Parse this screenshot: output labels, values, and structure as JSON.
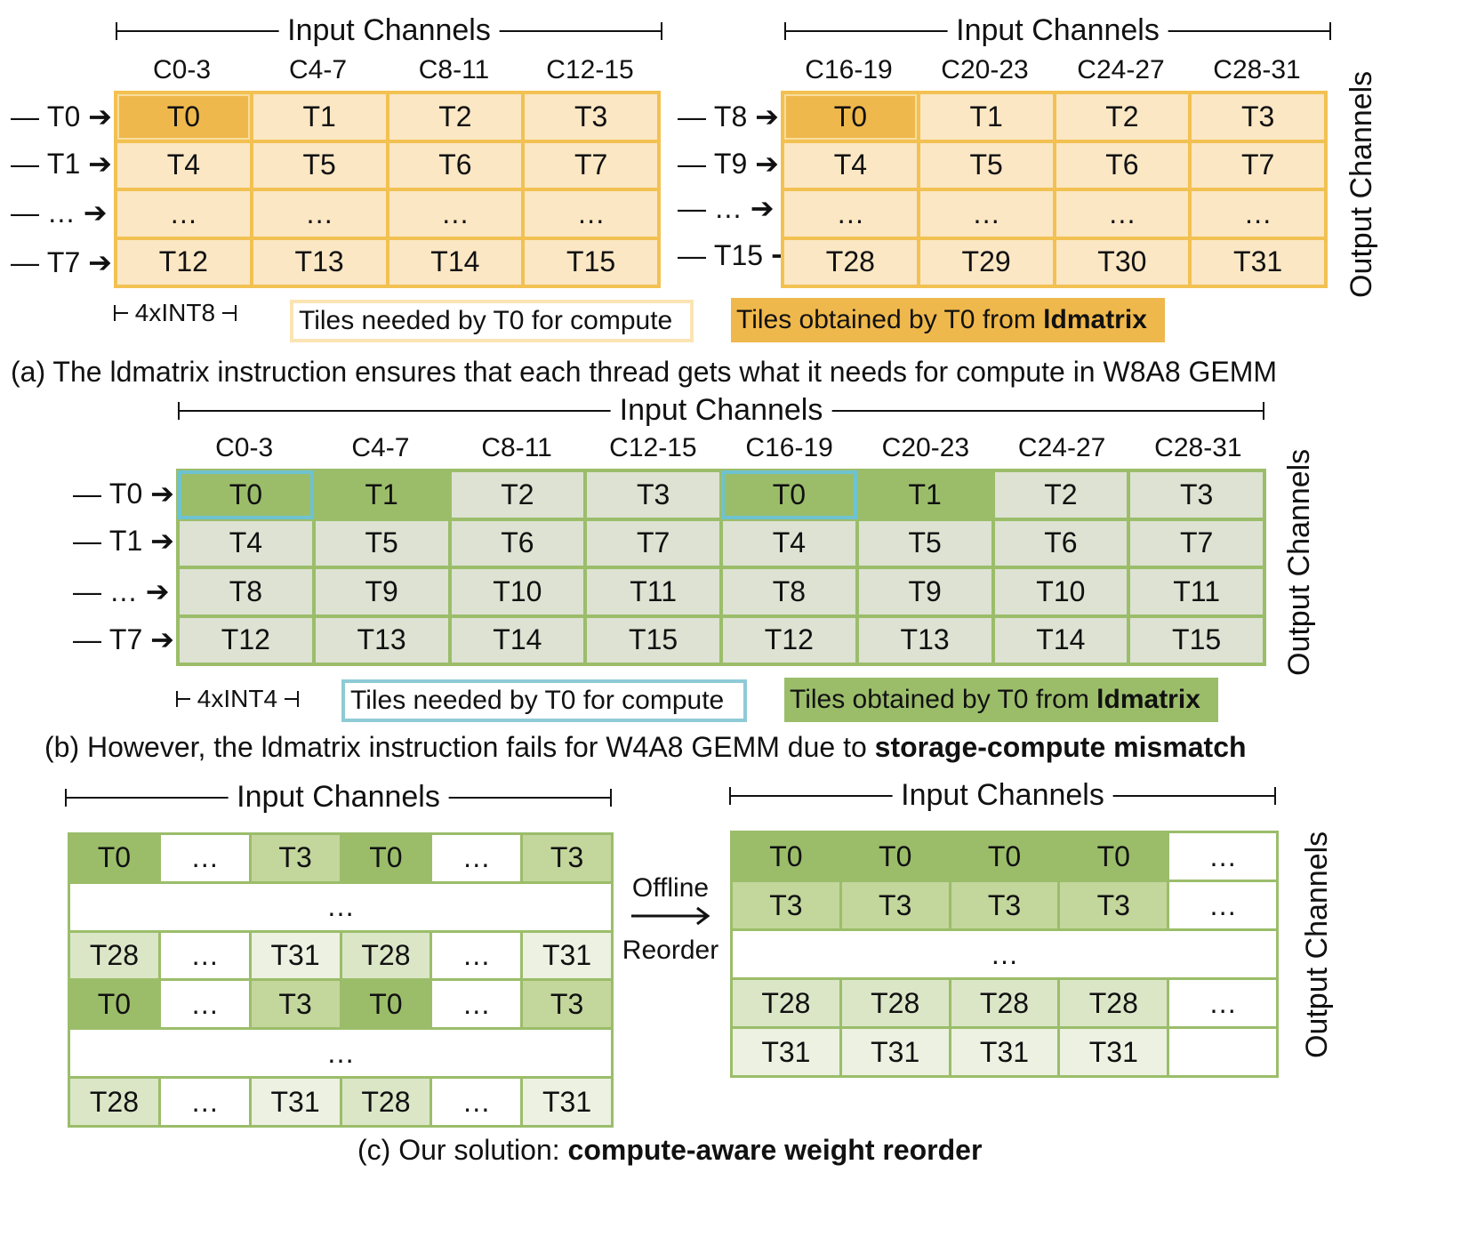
{
  "panel_a": {
    "left": {
      "header": "Input Channels",
      "columns": [
        "C0-3",
        "C4-7",
        "C8-11",
        "C12-15"
      ],
      "row_labels": [
        "T0",
        "T1",
        "…",
        "T7"
      ],
      "cells": [
        [
          "T0",
          "T1",
          "T2",
          "T3"
        ],
        [
          "T4",
          "T5",
          "T6",
          "T7"
        ],
        [
          "…",
          "…",
          "…",
          "…"
        ],
        [
          "T12",
          "T13",
          "T14",
          "T15"
        ]
      ]
    },
    "right": {
      "header": "Input Channels",
      "columns": [
        "C16-19",
        "C20-23",
        "C24-27",
        "C28-31"
      ],
      "row_labels": [
        "T8",
        "T9",
        "…",
        "T15"
      ],
      "cells": [
        [
          "T0",
          "T1",
          "T2",
          "T3"
        ],
        [
          "T4",
          "T5",
          "T6",
          "T7"
        ],
        [
          "…",
          "…",
          "…",
          "…"
        ],
        [
          "T28",
          "T29",
          "T30",
          "T31"
        ]
      ]
    },
    "side_label": "Output Channels",
    "scale_label": "4xINT8",
    "legend_needed": "Tiles needed by T0 for compute",
    "legend_obtained_prefix": "Tiles obtained by T0 from ",
    "legend_obtained_bold": "ldmatrix",
    "caption": "(a) The ldmatrix instruction ensures that each thread gets what it needs for compute in W8A8 GEMM",
    "colors": {
      "light": "#fbe7c4",
      "dark": "#efb84c",
      "border": "#f2c152"
    }
  },
  "panel_b": {
    "header": "Input Channels",
    "columns": [
      "C0-3",
      "C4-7",
      "C8-11",
      "C12-15",
      "C16-19",
      "C20-23",
      "C24-27",
      "C28-31"
    ],
    "row_labels": [
      "T0",
      "T1",
      "…",
      "T7"
    ],
    "cells": [
      [
        "T0",
        "T1",
        "T2",
        "T3",
        "T0",
        "T1",
        "T2",
        "T3"
      ],
      [
        "T4",
        "T5",
        "T6",
        "T7",
        "T4",
        "T5",
        "T6",
        "T7"
      ],
      [
        "T8",
        "T9",
        "T10",
        "T11",
        "T8",
        "T9",
        "T10",
        "T11"
      ],
      [
        "T12",
        "T13",
        "T14",
        "T15",
        "T12",
        "T13",
        "T14",
        "T15"
      ]
    ],
    "side_label": "Output Channels",
    "scale_label": "4xINT4",
    "legend_needed": "Tiles needed by T0 for compute",
    "legend_obtained_prefix": "Tiles obtained by T0 from ",
    "legend_obtained_bold": "ldmatrix",
    "caption_prefix": "(b) However, the ldmatrix instruction fails for W4A8 GEMM due to ",
    "caption_bold": "storage-compute mismatch",
    "colors": {
      "light": "#dde2d2",
      "dark": "#9bbd6a",
      "border": "#9bbd6a",
      "highlight": "#6ec3d0"
    }
  },
  "panel_c": {
    "left_header": "Input Channels",
    "right_header": "Input Channels",
    "left_rows": [
      [
        "T0",
        "…",
        "T3",
        "T0",
        "…",
        "T3"
      ],
      [
        "…"
      ],
      [
        "T28",
        "…",
        "T31",
        "T28",
        "…",
        "T31"
      ],
      [
        "T0",
        "…",
        "T3",
        "T0",
        "…",
        "T3"
      ],
      [
        "…"
      ],
      [
        "T28",
        "…",
        "T31",
        "T28",
        "…",
        "T31"
      ]
    ],
    "right_rows": [
      [
        "T0",
        "T0",
        "T0",
        "T0",
        "…"
      ],
      [
        "T3",
        "T3",
        "T3",
        "T3",
        "…"
      ],
      [
        "…"
      ],
      [
        "T28",
        "T28",
        "T28",
        "T28",
        "…"
      ],
      [
        "T31",
        "T31",
        "T31",
        "T31",
        ""
      ]
    ],
    "arrow_top": "Offline",
    "arrow_bottom": "Reorder",
    "side_label": "Output Channels",
    "caption_prefix": "(c) Our solution: ",
    "caption_bold": "compute-aware weight reorder",
    "colors": {
      "t0": "#9bbd6a",
      "t3": "#c3d69c",
      "t28": "#dbe6c7",
      "t31": "#ecf1e1",
      "border": "#9bbd6a"
    }
  }
}
